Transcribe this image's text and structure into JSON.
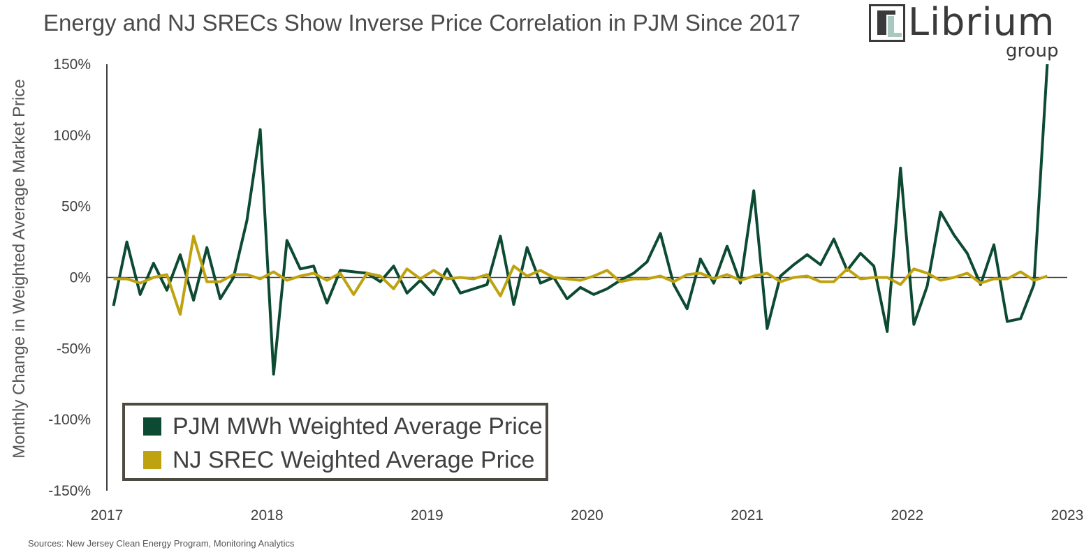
{
  "title": "Energy and NJ SRECs Show Inverse Price Correlation in PJM Since 2017",
  "logo": {
    "word": "Librium",
    "sub": "group"
  },
  "source": "Sources: New Jersey Clean Energy Program, Monitoring Analytics",
  "colors": {
    "pjm": "#0c4a32",
    "srec": "#bfa20f",
    "axis": "#404040",
    "legend_border": "#4d4a40"
  },
  "chart_data": {
    "type": "line",
    "ylabel": "Monthly Change in Weighted Average Market Price",
    "xlabel": "",
    "ylim": [
      -150,
      150
    ],
    "xlim": [
      2017,
      2023
    ],
    "yticks": [
      150,
      100,
      50,
      0,
      -50,
      -100,
      -150
    ],
    "ytick_labels": [
      "150%",
      "100%",
      "50%",
      "0%",
      "-50%",
      "-100%",
      "-150%"
    ],
    "xticks": [
      2017,
      2018,
      2019,
      2020,
      2021,
      2022,
      2023
    ],
    "xtick_labels": [
      "2017",
      "2018",
      "2019",
      "2020",
      "2021",
      "2022",
      "2023"
    ],
    "grid": false,
    "legend_position": "bottom-left",
    "x_start": "2017-01",
    "x_step": "month",
    "series": [
      {
        "name": "PJM MWh Weighted Average Price",
        "color": "#0c4a32",
        "values": [
          -20,
          25,
          -12,
          10,
          -9,
          16,
          -16,
          21,
          -15,
          0,
          40,
          104,
          -68,
          26,
          6,
          8,
          -18,
          5,
          4,
          3,
          -3,
          8,
          -11,
          -2,
          -12,
          6,
          -11,
          -8,
          -5,
          29,
          -19,
          21,
          -4,
          0,
          -15,
          -7,
          -12,
          -8,
          -2,
          3,
          11,
          31,
          -5,
          -22,
          13,
          -4,
          22,
          -4,
          61,
          -36,
          1,
          9,
          16,
          9,
          27,
          5,
          17,
          8,
          -38,
          77,
          -33,
          -6,
          46,
          30,
          17,
          -5,
          23,
          -31,
          -29,
          -5,
          150
        ]
      },
      {
        "name": "NJ SREC Weighted Average Price",
        "color": "#bfa20f",
        "values": [
          -1,
          -1,
          -4,
          0,
          2,
          -26,
          29,
          -3,
          -3,
          2,
          2,
          -1,
          4,
          -2,
          1,
          3,
          -2,
          3,
          -12,
          3,
          1,
          -8,
          6,
          -1,
          5,
          -1,
          0,
          -1,
          2,
          -13,
          8,
          1,
          5,
          0,
          -1,
          -2,
          1,
          5,
          -3,
          -1,
          -1,
          1,
          -3,
          2,
          3,
          -1,
          2,
          -2,
          1,
          3,
          -3,
          0,
          1,
          -3,
          -3,
          6,
          -1,
          0,
          0,
          -5,
          6,
          3,
          -2,
          0,
          3,
          -4,
          -1,
          -1,
          4,
          -2,
          1
        ]
      }
    ]
  }
}
